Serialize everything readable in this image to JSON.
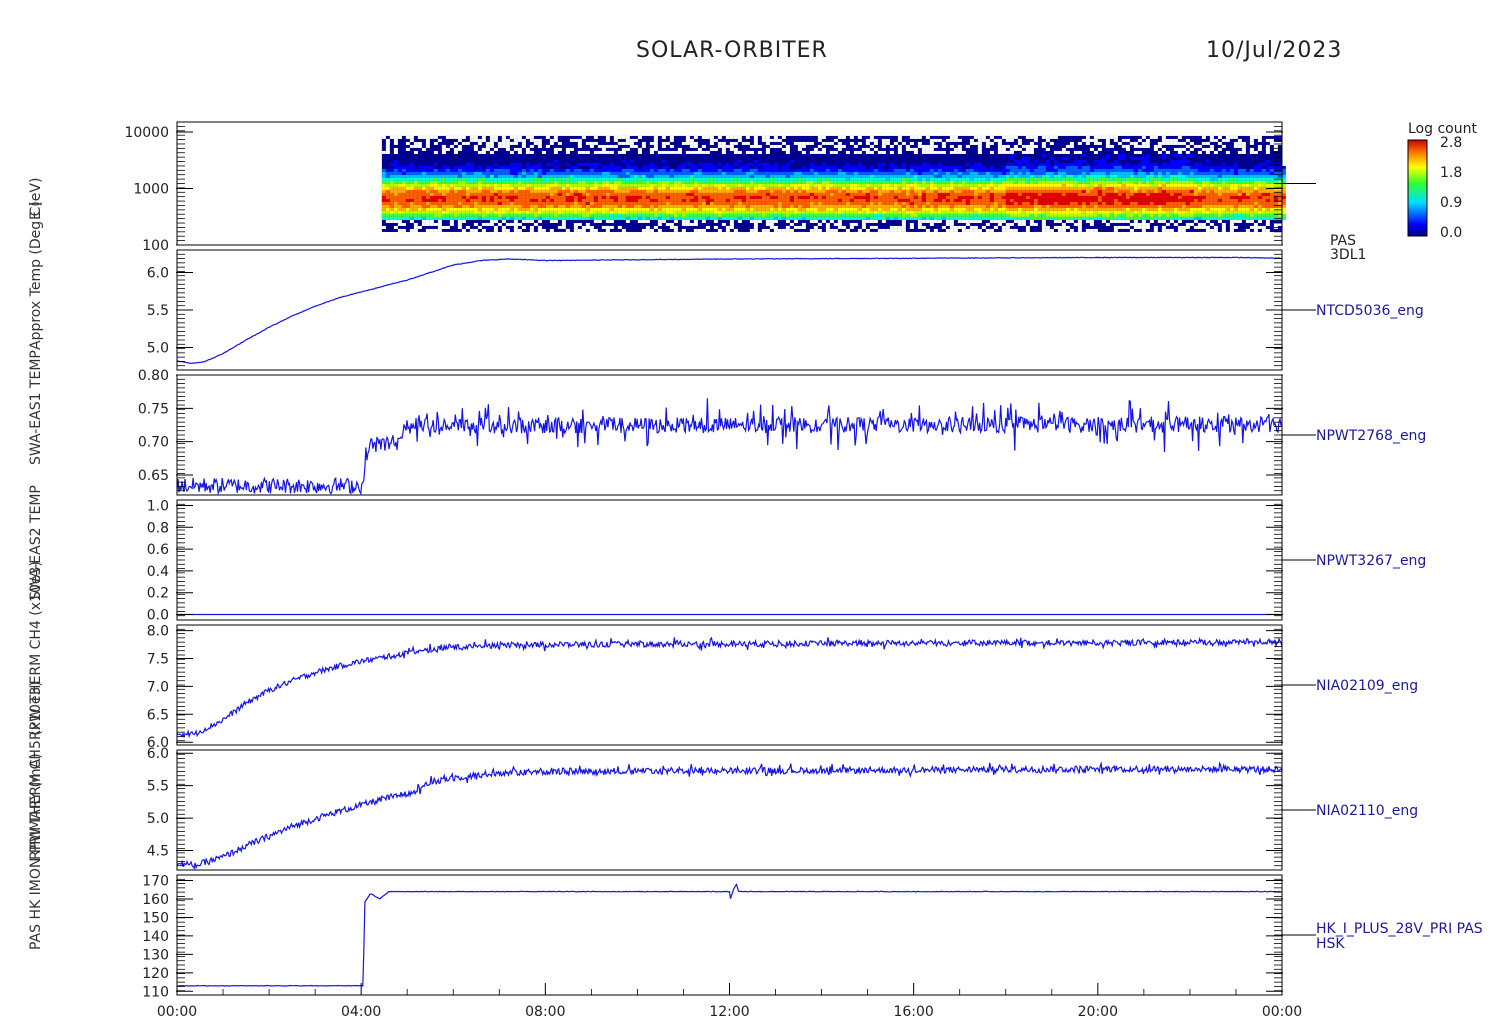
{
  "header": {
    "title": "SOLAR-ORBITER",
    "date": "10/Jul/2023"
  },
  "colorbar": {
    "title": "Log count",
    "ticks": [
      "2.8",
      "1.8",
      "0.9",
      "0.0"
    ]
  },
  "chart_data": {
    "type": "line",
    "x_ticks": [
      "00:00",
      "04:00",
      "08:00",
      "12:00",
      "16:00",
      "20:00",
      "00:00"
    ],
    "x_range_hours": [
      0,
      24
    ],
    "panels": [
      {
        "id": "pas",
        "type": "heatmap",
        "ylabel": "E (eV)",
        "right_label": [
          "PAS",
          "3DL1"
        ],
        "y_log": true,
        "y_range": [
          100,
          15000
        ],
        "y_ticks": [
          "10000",
          "1000",
          "100"
        ],
        "data_start_hour": 4.45,
        "peak_energy_eV": 700,
        "colorbar_range": [
          0.0,
          2.8
        ]
      },
      {
        "id": "ntcd5036",
        "type": "line",
        "ylabel": "Approx Temp (Deg C)",
        "right_label": "NTCD5036_eng",
        "y_range": [
          4.7,
          6.3
        ],
        "y_ticks": [
          "6.0",
          "5.5",
          "5.0"
        ],
        "noise": 0.004,
        "points": [
          [
            0,
            4.82
          ],
          [
            0.3,
            4.79
          ],
          [
            0.6,
            4.81
          ],
          [
            1,
            4.92
          ],
          [
            1.5,
            5.1
          ],
          [
            2,
            5.27
          ],
          [
            2.5,
            5.42
          ],
          [
            3,
            5.55
          ],
          [
            3.5,
            5.66
          ],
          [
            4,
            5.74
          ],
          [
            4.5,
            5.82
          ],
          [
            5,
            5.9
          ],
          [
            5.5,
            6.0
          ],
          [
            6,
            6.1
          ],
          [
            6.6,
            6.16
          ],
          [
            7.2,
            6.18
          ],
          [
            8,
            6.16
          ],
          [
            10,
            6.17
          ],
          [
            12,
            6.18
          ],
          [
            16,
            6.19
          ],
          [
            20,
            6.2
          ],
          [
            23,
            6.2
          ],
          [
            24,
            6.19
          ]
        ]
      },
      {
        "id": "npwt2768",
        "type": "line",
        "ylabel": "SWA-EAS1 TEMP",
        "right_label": "NPWT2768_eng",
        "y_range": [
          0.62,
          0.8
        ],
        "y_ticks": [
          "0.80",
          "0.75",
          "0.70",
          "0.65"
        ],
        "noise": 0.012,
        "spike": 0.03,
        "points": [
          [
            0,
            0.634
          ],
          [
            4.05,
            0.634
          ],
          [
            4.1,
            0.68
          ],
          [
            4.2,
            0.695
          ],
          [
            4.9,
            0.7
          ],
          [
            5.0,
            0.724
          ],
          [
            8,
            0.724
          ],
          [
            24,
            0.726
          ]
        ]
      },
      {
        "id": "npwt3267",
        "type": "line",
        "ylabel": "SWA-EAS2 TEMP",
        "right_label": "NPWT3267_eng",
        "y_range": [
          -0.05,
          1.05
        ],
        "y_ticks": [
          "1.0",
          "0.8",
          "0.6",
          "0.4",
          "0.2",
          "0.0"
        ],
        "noise": 0.0,
        "points": [
          [
            0,
            0.0
          ],
          [
            24,
            0.0
          ]
        ]
      },
      {
        "id": "nia02109",
        "type": "line",
        "ylabel": "RPW THERM CH4 (x10e3)",
        "right_label": "NIA02109_eng",
        "y_range": [
          5.95,
          8.1
        ],
        "y_ticks": [
          "8.0",
          "7.5",
          "7.0",
          "6.5",
          "6.0"
        ],
        "noise": 0.05,
        "spike": 0.08,
        "points": [
          [
            0,
            6.15
          ],
          [
            0.4,
            6.15
          ],
          [
            1,
            6.4
          ],
          [
            1.5,
            6.7
          ],
          [
            2,
            6.93
          ],
          [
            2.5,
            7.1
          ],
          [
            3,
            7.25
          ],
          [
            3.5,
            7.36
          ],
          [
            4,
            7.45
          ],
          [
            4.5,
            7.52
          ],
          [
            5,
            7.6
          ],
          [
            5.5,
            7.65
          ],
          [
            6,
            7.7
          ],
          [
            7,
            7.74
          ],
          [
            8,
            7.75
          ],
          [
            12,
            7.76
          ],
          [
            16,
            7.78
          ],
          [
            20,
            7.78
          ],
          [
            24,
            7.8
          ]
        ]
      },
      {
        "id": "nia02110",
        "type": "line",
        "ylabel": "RPW THERM CH5 (x10e3)",
        "right_label": "NIA02110_eng",
        "y_range": [
          4.2,
          6.05
        ],
        "y_ticks": [
          "6.0",
          "5.5",
          "5.0",
          "4.5"
        ],
        "noise": 0.05,
        "spike": 0.07,
        "points": [
          [
            0,
            4.3
          ],
          [
            0.4,
            4.27
          ],
          [
            1,
            4.4
          ],
          [
            1.5,
            4.57
          ],
          [
            2,
            4.72
          ],
          [
            2.5,
            4.87
          ],
          [
            3,
            4.99
          ],
          [
            3.5,
            5.1
          ],
          [
            4,
            5.2
          ],
          [
            4.5,
            5.3
          ],
          [
            5,
            5.38
          ],
          [
            5.2,
            5.45
          ],
          [
            5.5,
            5.55
          ],
          [
            6,
            5.62
          ],
          [
            7,
            5.7
          ],
          [
            8,
            5.72
          ],
          [
            12,
            5.73
          ],
          [
            16,
            5.74
          ],
          [
            20,
            5.76
          ],
          [
            24,
            5.75
          ]
        ]
      },
      {
        "id": "hk_i_plus_28v",
        "type": "line",
        "ylabel": "PAS HK IMON PRIMARY (mA)",
        "right_label": [
          "HK_I_PLUS_28V_PRI PAS",
          "HSK"
        ],
        "y_range": [
          108,
          173
        ],
        "y_ticks": [
          "170",
          "160",
          "150",
          "140",
          "130",
          "120",
          "110"
        ],
        "noise": 0.15,
        "points": [
          [
            0,
            113
          ],
          [
            4.05,
            113
          ],
          [
            4.07,
            158
          ],
          [
            4.2,
            163
          ],
          [
            4.4,
            160
          ],
          [
            4.6,
            164
          ],
          [
            4.8,
            164
          ],
          [
            12.0,
            164
          ],
          [
            12.02,
            160
          ],
          [
            12.1,
            166
          ],
          [
            12.15,
            168
          ],
          [
            12.2,
            164
          ],
          [
            24,
            164
          ]
        ]
      }
    ]
  }
}
